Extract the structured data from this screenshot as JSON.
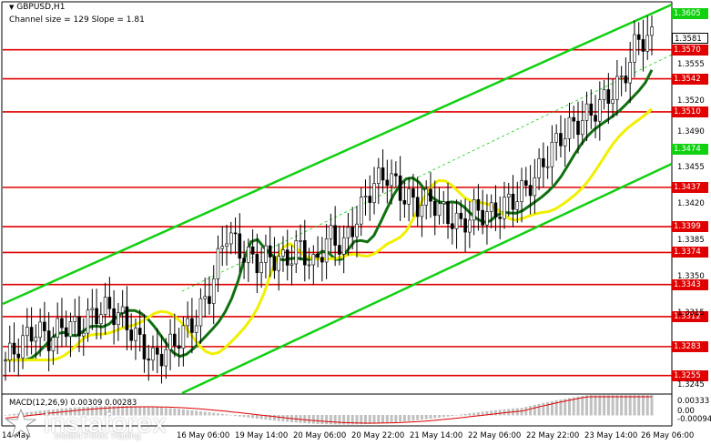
{
  "header": {
    "symbol": "GBPUSD,H1",
    "channel": "Channel size = 129 Slope = 1.81"
  },
  "price_axis": {
    "ticks": [
      "1.3555",
      "1.3520",
      "1.3490",
      "1.3455",
      "1.3420",
      "1.3385",
      "1.3350",
      "1.3315",
      "1.3245"
    ],
    "tick_values": [
      1.3555,
      1.352,
      1.349,
      1.3455,
      1.342,
      1.3385,
      1.335,
      1.3315,
      1.3245
    ]
  },
  "levels": [
    {
      "label": "1.3605",
      "value": 1.3605,
      "color": "#10d010"
    },
    {
      "label": "1.3581",
      "value": 1.3581,
      "color": "#ffffff",
      "text_color": "#000000"
    },
    {
      "label": "1.3570",
      "value": 1.357,
      "color": "#e00000"
    },
    {
      "label": "1.3542",
      "value": 1.3542,
      "color": "#e00000"
    },
    {
      "label": "1.3510",
      "value": 1.351,
      "color": "#e00000"
    },
    {
      "label": "1.3474",
      "value": 1.3474,
      "color": "#10d010"
    },
    {
      "label": "1.3437",
      "value": 1.3437,
      "color": "#e00000"
    },
    {
      "label": "1.3399",
      "value": 1.3399,
      "color": "#e00000"
    },
    {
      "label": "1.3374",
      "value": 1.3374,
      "color": "#e00000"
    },
    {
      "label": "1.3343",
      "value": 1.3343,
      "color": "#e00000"
    },
    {
      "label": "1.3312",
      "value": 1.3312,
      "color": "#e00000"
    },
    {
      "label": "1.3283",
      "value": 1.3283,
      "color": "#e00000"
    },
    {
      "label": "1.3255",
      "value": 1.3255,
      "color": "#e00000"
    }
  ],
  "time_axis": [
    "14 May",
    "16 May 06:00",
    "19 May 14:00",
    "20 May 06:00",
    "20 May 22:00",
    "21 May 14:00",
    "22 May 06:00",
    "22 May 22:00",
    "23 May 14:00",
    "26 May 06:00"
  ],
  "macd": {
    "label": "MACD(12,26,9) 0.00309 0.00283",
    "axis_top": "0.00333",
    "axis_zero": "0.00",
    "axis_bottom": "-0.00094"
  },
  "logo": {
    "brand": "instaforex",
    "tagline": "Instant Forex Trading"
  },
  "colors": {
    "level_line": "#e00000",
    "channel": "#10d010",
    "ma_dark": "#107010",
    "ma_yellow": "#f0f000",
    "candle": "#000000",
    "macd_hist": "#c0c0c0",
    "macd_signal": "#e00000"
  },
  "chart_data": {
    "type": "line",
    "title": "GBPUSD,H1",
    "ylim": [
      1.3235,
      1.3615
    ],
    "series": [
      {
        "name": "price",
        "values": [
          1.327,
          1.3285,
          1.33,
          1.329,
          1.3305,
          1.33,
          1.3315,
          1.332,
          1.331,
          1.329,
          1.327,
          1.328,
          1.3295,
          1.331,
          1.334,
          1.3395,
          1.3375,
          1.3365,
          1.337,
          1.3365,
          1.338,
          1.336,
          1.339,
          1.338,
          1.341,
          1.344,
          1.345,
          1.343,
          1.342,
          1.3425,
          1.341,
          1.34,
          1.3415,
          1.341,
          1.342,
          1.343,
          1.3445,
          1.347,
          1.349,
          1.35,
          1.351,
          1.3525,
          1.354,
          1.358,
          1.3581
        ]
      }
    ]
  }
}
